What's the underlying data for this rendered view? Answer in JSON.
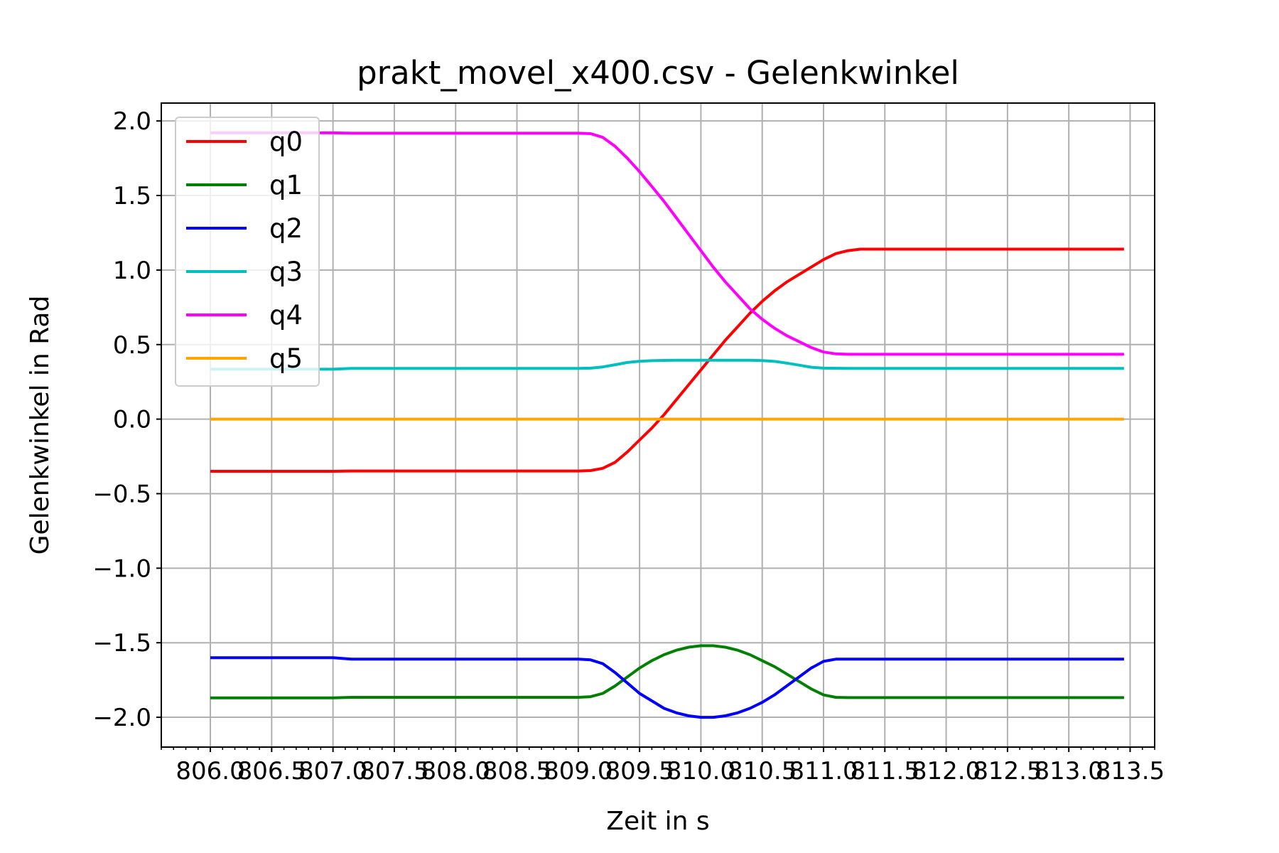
{
  "chart_data": {
    "type": "line",
    "title": "prakt_movel_x400.csv - Gelenkwinkel",
    "xlabel": "Zeit in s",
    "ylabel": "Gelenkwinkel in Rad",
    "xlim": [
      805.6,
      813.7
    ],
    "ylim": [
      -2.2,
      2.12
    ],
    "grid": true,
    "legend_position": "upper-left",
    "x_ticks": [
      806.0,
      806.5,
      807.0,
      807.5,
      808.0,
      808.5,
      809.0,
      809.5,
      810.0,
      810.5,
      811.0,
      811.5,
      812.0,
      812.5,
      813.0,
      813.5
    ],
    "x_tick_labels": [
      "806.0",
      "806.5",
      "807.0",
      "807.5",
      "808.0",
      "808.5",
      "809.0",
      "809.5",
      "810.0",
      "810.5",
      "811.0",
      "811.5",
      "812.0",
      "812.5",
      "813.0",
      "813.5"
    ],
    "y_ticks": [
      -2.0,
      -1.5,
      -1.0,
      -0.5,
      0.0,
      0.5,
      1.0,
      1.5,
      2.0
    ],
    "y_tick_labels": [
      "−2.0",
      "−1.5",
      "−1.0",
      "−0.5",
      "0.0",
      "0.5",
      "1.0",
      "1.5",
      "2.0"
    ],
    "series": [
      {
        "name": "q0",
        "color": "#ff0000",
        "x": [
          806.0,
          807.0,
          807.15,
          808.0,
          809.0,
          809.1,
          809.2,
          809.3,
          809.4,
          809.5,
          809.6,
          809.7,
          809.8,
          809.9,
          810.0,
          810.1,
          810.2,
          810.3,
          810.4,
          810.5,
          810.6,
          810.7,
          810.8,
          810.9,
          811.0,
          811.1,
          811.2,
          811.3,
          812.0,
          813.0,
          813.45
        ],
        "y": [
          -0.35,
          -0.35,
          -0.348,
          -0.348,
          -0.348,
          -0.345,
          -0.33,
          -0.29,
          -0.22,
          -0.14,
          -0.06,
          0.03,
          0.13,
          0.23,
          0.33,
          0.43,
          0.53,
          0.62,
          0.71,
          0.79,
          0.86,
          0.92,
          0.97,
          1.02,
          1.07,
          1.11,
          1.13,
          1.14,
          1.14,
          1.14,
          1.14
        ]
      },
      {
        "name": "q1",
        "color": "#008000",
        "x": [
          806.0,
          807.0,
          807.15,
          808.0,
          809.0,
          809.1,
          809.2,
          809.3,
          809.4,
          809.5,
          809.6,
          809.7,
          809.8,
          809.9,
          810.0,
          810.1,
          810.2,
          810.3,
          810.4,
          810.5,
          810.6,
          810.7,
          810.8,
          810.9,
          811.0,
          811.1,
          811.2,
          811.3,
          812.0,
          813.0,
          813.45
        ],
        "y": [
          -1.87,
          -1.87,
          -1.866,
          -1.866,
          -1.866,
          -1.862,
          -1.84,
          -1.79,
          -1.73,
          -1.67,
          -1.62,
          -1.58,
          -1.55,
          -1.53,
          -1.52,
          -1.52,
          -1.53,
          -1.55,
          -1.58,
          -1.62,
          -1.66,
          -1.71,
          -1.76,
          -1.81,
          -1.85,
          -1.866,
          -1.868,
          -1.868,
          -1.868,
          -1.868,
          -1.868
        ]
      },
      {
        "name": "q2",
        "color": "#0000ff",
        "x": [
          806.0,
          807.0,
          807.15,
          808.0,
          809.0,
          809.1,
          809.2,
          809.3,
          809.4,
          809.5,
          809.6,
          809.7,
          809.8,
          809.9,
          810.0,
          810.1,
          810.2,
          810.3,
          810.4,
          810.5,
          810.6,
          810.7,
          810.8,
          810.9,
          811.0,
          811.1,
          811.2,
          811.3,
          812.0,
          813.0,
          813.45
        ],
        "y": [
          -1.6,
          -1.6,
          -1.61,
          -1.61,
          -1.61,
          -1.615,
          -1.64,
          -1.7,
          -1.77,
          -1.84,
          -1.89,
          -1.94,
          -1.97,
          -1.99,
          -2.0,
          -2.0,
          -1.99,
          -1.97,
          -1.94,
          -1.9,
          -1.85,
          -1.79,
          -1.73,
          -1.67,
          -1.625,
          -1.61,
          -1.61,
          -1.61,
          -1.61,
          -1.61,
          -1.61
        ]
      },
      {
        "name": "q3",
        "color": "#00bfbf",
        "x": [
          806.0,
          807.0,
          807.15,
          808.0,
          809.0,
          809.1,
          809.2,
          809.3,
          809.4,
          809.5,
          809.6,
          809.7,
          809.8,
          810.0,
          810.2,
          810.4,
          810.5,
          810.6,
          810.7,
          810.8,
          810.9,
          811.0,
          811.2,
          812.0,
          813.0,
          813.45
        ],
        "y": [
          0.335,
          0.335,
          0.34,
          0.34,
          0.34,
          0.342,
          0.35,
          0.365,
          0.38,
          0.388,
          0.392,
          0.394,
          0.395,
          0.395,
          0.395,
          0.395,
          0.393,
          0.387,
          0.376,
          0.362,
          0.348,
          0.342,
          0.34,
          0.34,
          0.34,
          0.34
        ]
      },
      {
        "name": "q4",
        "color": "#ff00ff",
        "x": [
          806.0,
          807.0,
          807.15,
          808.0,
          809.0,
          809.1,
          809.2,
          809.3,
          809.4,
          809.5,
          809.6,
          809.7,
          809.8,
          809.9,
          810.0,
          810.1,
          810.2,
          810.3,
          810.4,
          810.5,
          810.6,
          810.7,
          810.8,
          810.9,
          811.0,
          811.1,
          811.2,
          811.3,
          812.0,
          813.0,
          813.45
        ],
        "y": [
          1.92,
          1.92,
          1.918,
          1.918,
          1.918,
          1.915,
          1.89,
          1.83,
          1.75,
          1.66,
          1.56,
          1.46,
          1.35,
          1.24,
          1.13,
          1.02,
          0.92,
          0.83,
          0.74,
          0.67,
          0.61,
          0.56,
          0.52,
          0.48,
          0.45,
          0.438,
          0.435,
          0.435,
          0.435,
          0.435,
          0.435
        ]
      },
      {
        "name": "q5",
        "color": "#ffa500",
        "x": [
          806.0,
          807.0,
          808.0,
          809.0,
          810.0,
          811.0,
          812.0,
          813.0,
          813.45
        ],
        "y": [
          0.0,
          0.0,
          0.0,
          0.0,
          0.0,
          0.0,
          0.0,
          0.0,
          0.0
        ]
      }
    ]
  }
}
